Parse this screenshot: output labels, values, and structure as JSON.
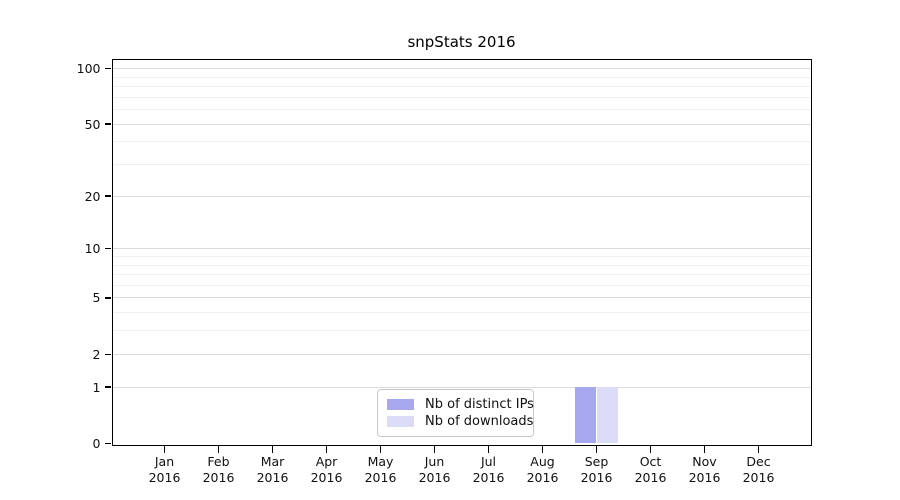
{
  "chart_data": {
    "type": "bar",
    "title": "snpStats 2016",
    "categories": [
      "Jan 2016",
      "Feb 2016",
      "Mar 2016",
      "Apr 2016",
      "May 2016",
      "Jun 2016",
      "Jul 2016",
      "Aug 2016",
      "Sep 2016",
      "Oct 2016",
      "Nov 2016",
      "Dec 2016"
    ],
    "x_tick_line1": [
      "Jan",
      "Feb",
      "Mar",
      "Apr",
      "May",
      "Jun",
      "Jul",
      "Aug",
      "Sep",
      "Oct",
      "Nov",
      "Dec"
    ],
    "x_tick_line2": "2016",
    "series": [
      {
        "name": "Nb of distinct IPs",
        "color": "#a7a7f0",
        "values": [
          0,
          0,
          0,
          0,
          0,
          0,
          0,
          0,
          1,
          0,
          0,
          0
        ]
      },
      {
        "name": "Nb of downloads",
        "color": "#dcdcf8",
        "values": [
          0,
          0,
          0,
          0,
          0,
          0,
          0,
          0,
          1,
          0,
          0,
          0
        ]
      }
    ],
    "yscale": "log1p",
    "ylim": [
      0,
      112
    ],
    "y_major_ticks": [
      0,
      1,
      2,
      5,
      10,
      20,
      50,
      100
    ],
    "y_minor_ticks": [
      3,
      4,
      6,
      7,
      8,
      9,
      30,
      40,
      60,
      70,
      80,
      90
    ],
    "grid": "horizontal",
    "legend_position": "inside-bottom-center"
  },
  "legend": {
    "items": [
      {
        "label": "Nb of distinct IPs",
        "color": "#a7a7f0"
      },
      {
        "label": "Nb of downloads",
        "color": "#dcdcf8"
      }
    ]
  },
  "colors": {
    "axis": "#000000",
    "grid_major": "#dbdbdb",
    "grid_minor": "#efefef",
    "background": "#ffffff",
    "bar_distinct_ips": "#a7a7f0",
    "bar_downloads": "#dcdcf8"
  }
}
